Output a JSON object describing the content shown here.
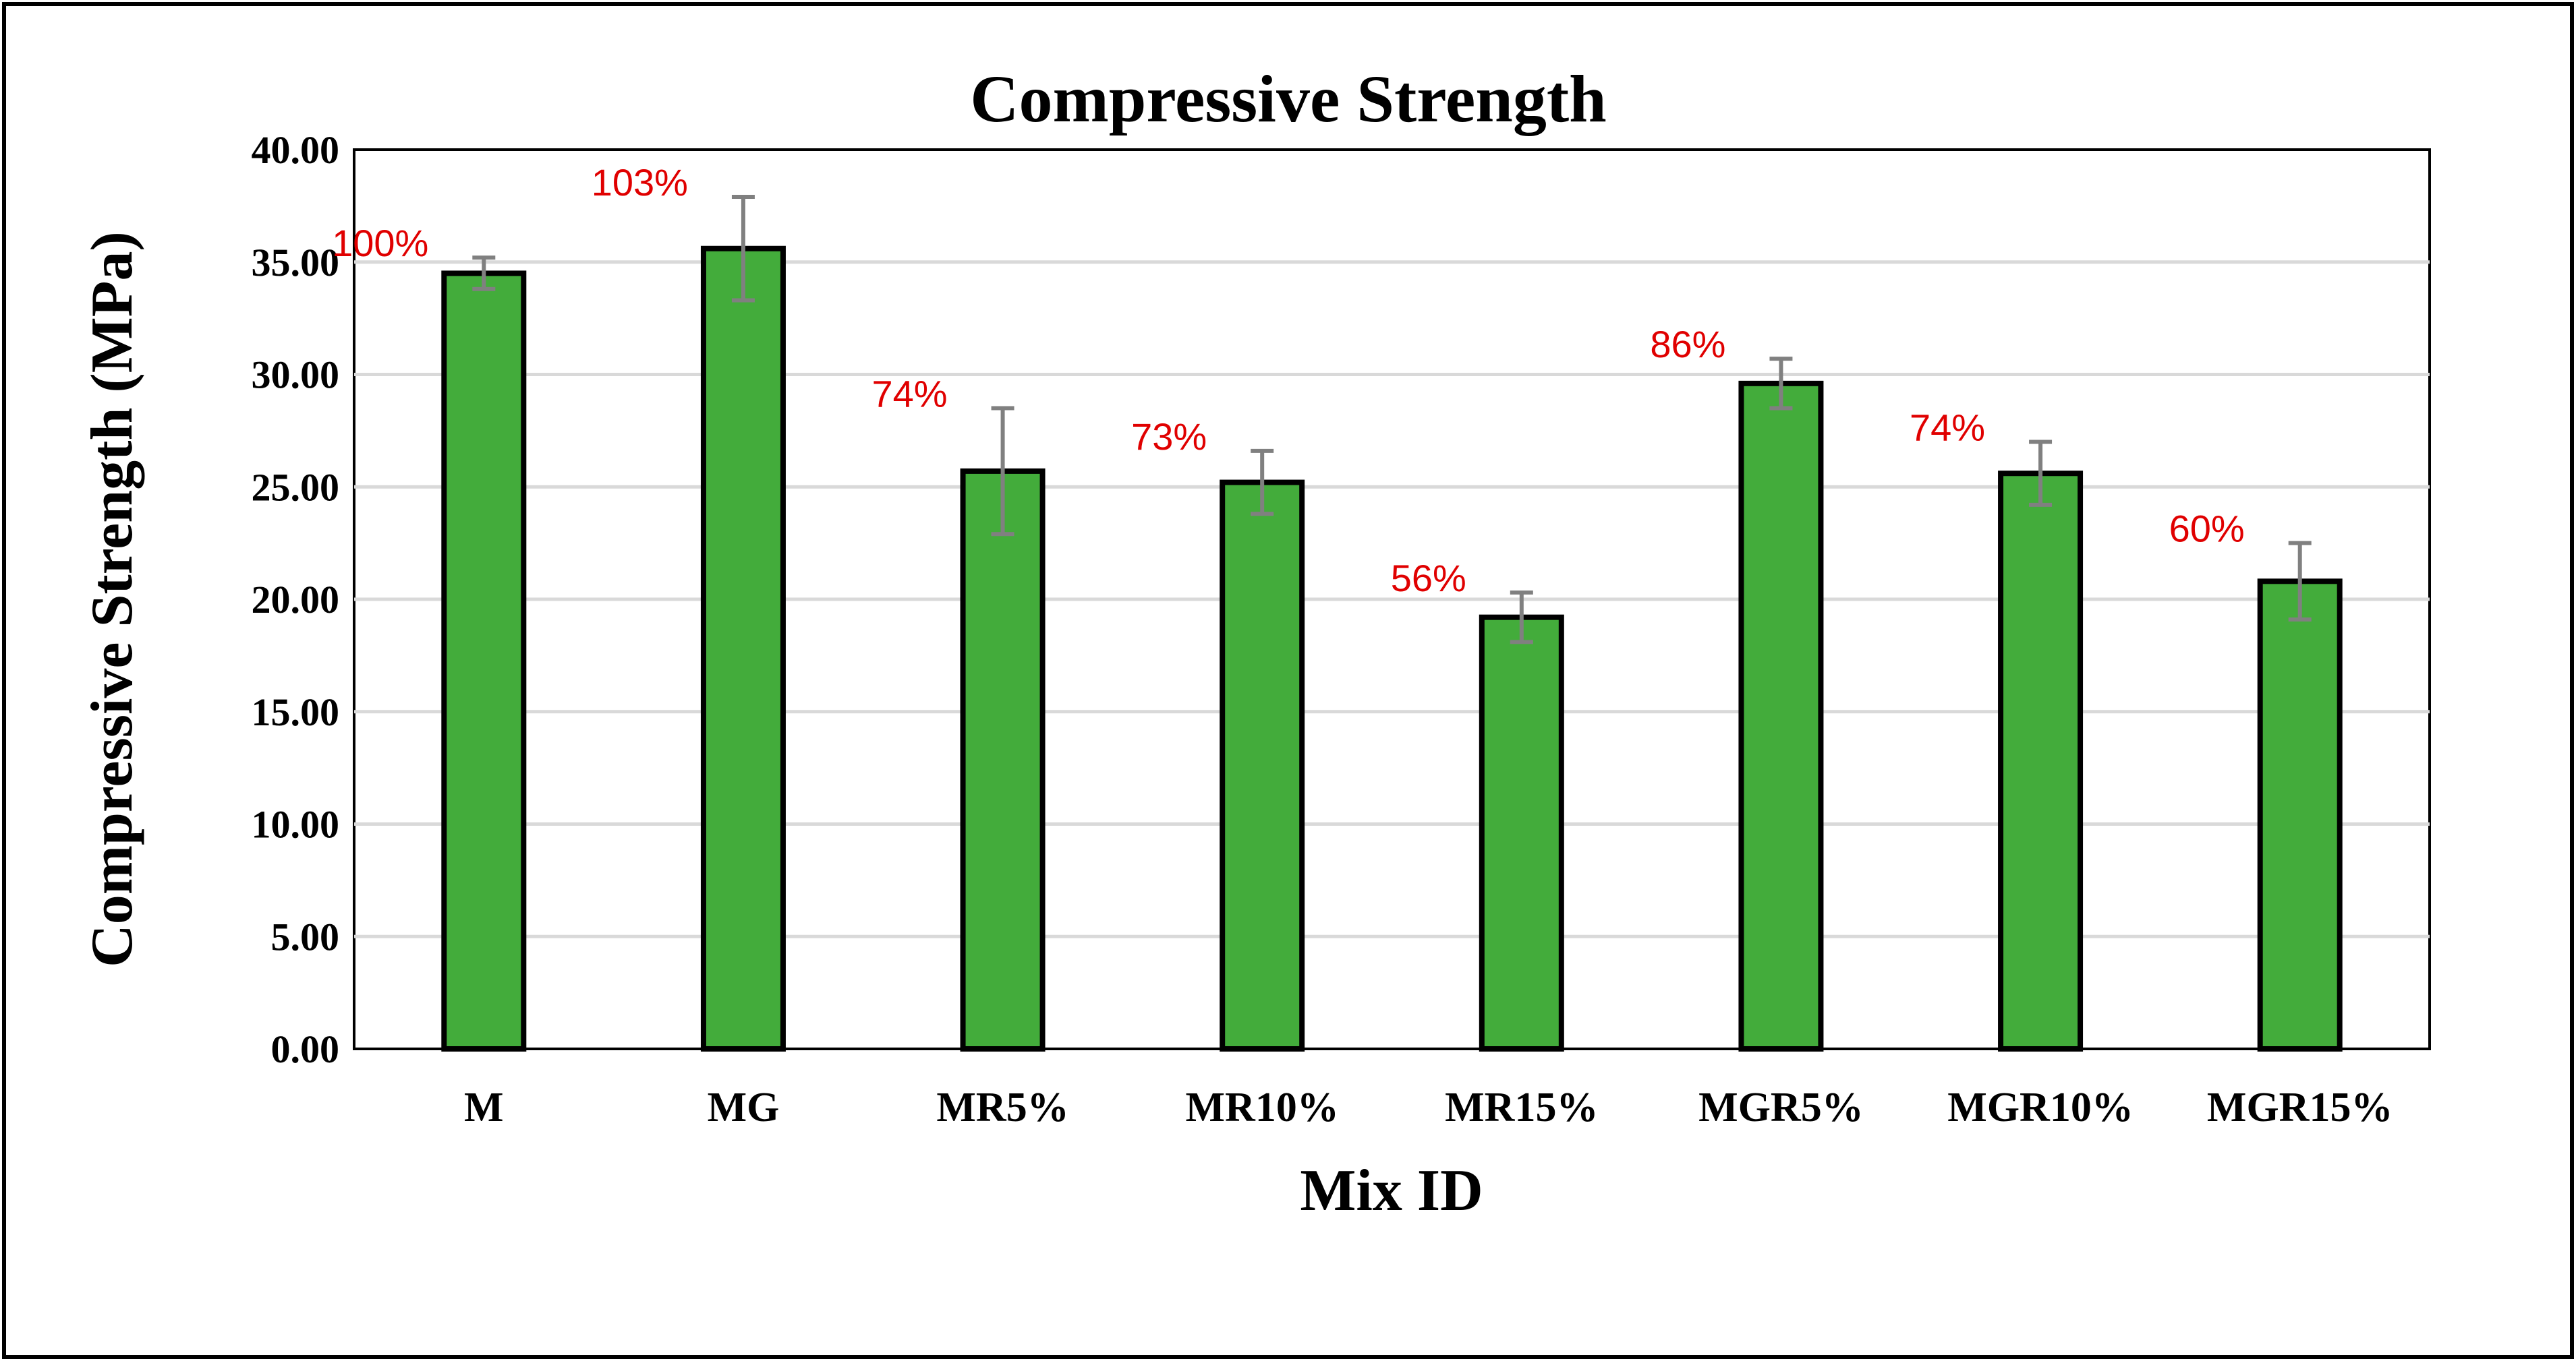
{
  "chart_data": {
    "type": "bar",
    "title": "Compressive Strength",
    "xlabel": "Mix ID",
    "ylabel": "Compressive Strength (MPa)",
    "ylim": [
      0,
      40
    ],
    "ytick_step": 5,
    "yticks": [
      "0.00",
      "5.00",
      "10.00",
      "15.00",
      "20.00",
      "25.00",
      "30.00",
      "35.00",
      "40.00"
    ],
    "grid": true,
    "categories": [
      "M",
      "MG",
      "MR5%",
      "MR10%",
      "MR15%",
      "MGR5%",
      "MGR10%",
      "MGR15%"
    ],
    "series": [
      {
        "name": "Compressive Strength",
        "values": [
          34.5,
          35.6,
          25.7,
          25.2,
          19.2,
          29.6,
          25.6,
          20.8
        ],
        "error": [
          0.7,
          2.3,
          2.8,
          1.4,
          1.1,
          1.1,
          1.4,
          1.7
        ]
      }
    ],
    "data_labels": [
      "100%",
      "103%",
      "74%",
      "73%",
      "56%",
      "86%",
      "74%",
      "60%"
    ]
  },
  "colors": {
    "bar_fill": "#43ac3b",
    "bar_stroke": "#000000",
    "error_bar": "#808080",
    "grid": "#d9d9d9",
    "data_label": "#e00000",
    "frame": "#000000"
  }
}
